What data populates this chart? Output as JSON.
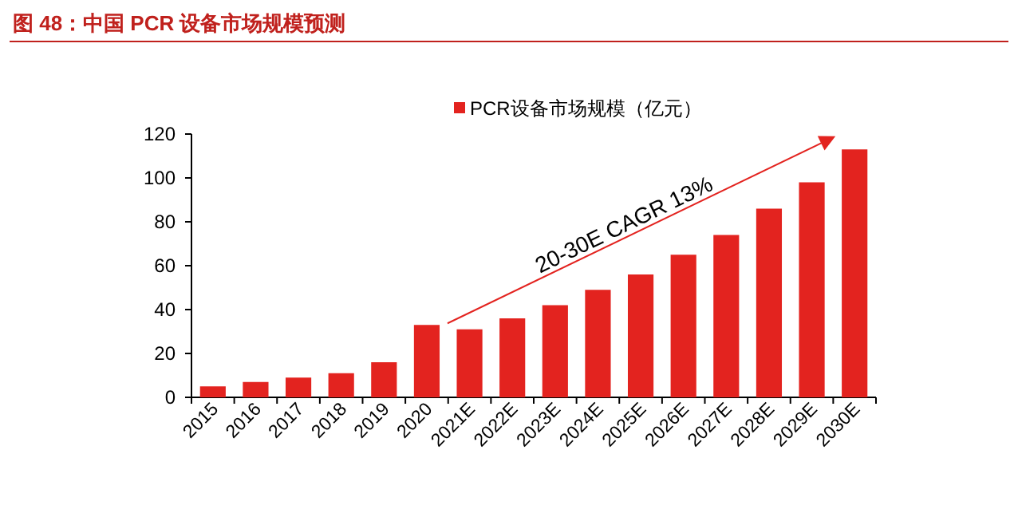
{
  "chart_data": {
    "type": "bar",
    "title": "图 48：中国 PCR 设备市场规模预测",
    "categories": [
      "2015",
      "2016",
      "2017",
      "2018",
      "2019",
      "2020",
      "2021E",
      "2022E",
      "2023E",
      "2024E",
      "2025E",
      "2026E",
      "2027E",
      "2028E",
      "2029E",
      "2030E"
    ],
    "series": [
      {
        "name": "PCR设备市场规模（亿元）",
        "color": "#e3231f",
        "values": [
          5,
          7,
          9,
          11,
          16,
          33,
          31,
          36,
          42,
          49,
          56,
          65,
          74,
          86,
          98,
          113
        ]
      }
    ],
    "ylim": [
      0,
      120
    ],
    "yticks": [
      0,
      20,
      40,
      60,
      80,
      100,
      120
    ],
    "legend": "top",
    "grid": false,
    "annotations": [
      "20-30E CAGR 13%"
    ]
  }
}
